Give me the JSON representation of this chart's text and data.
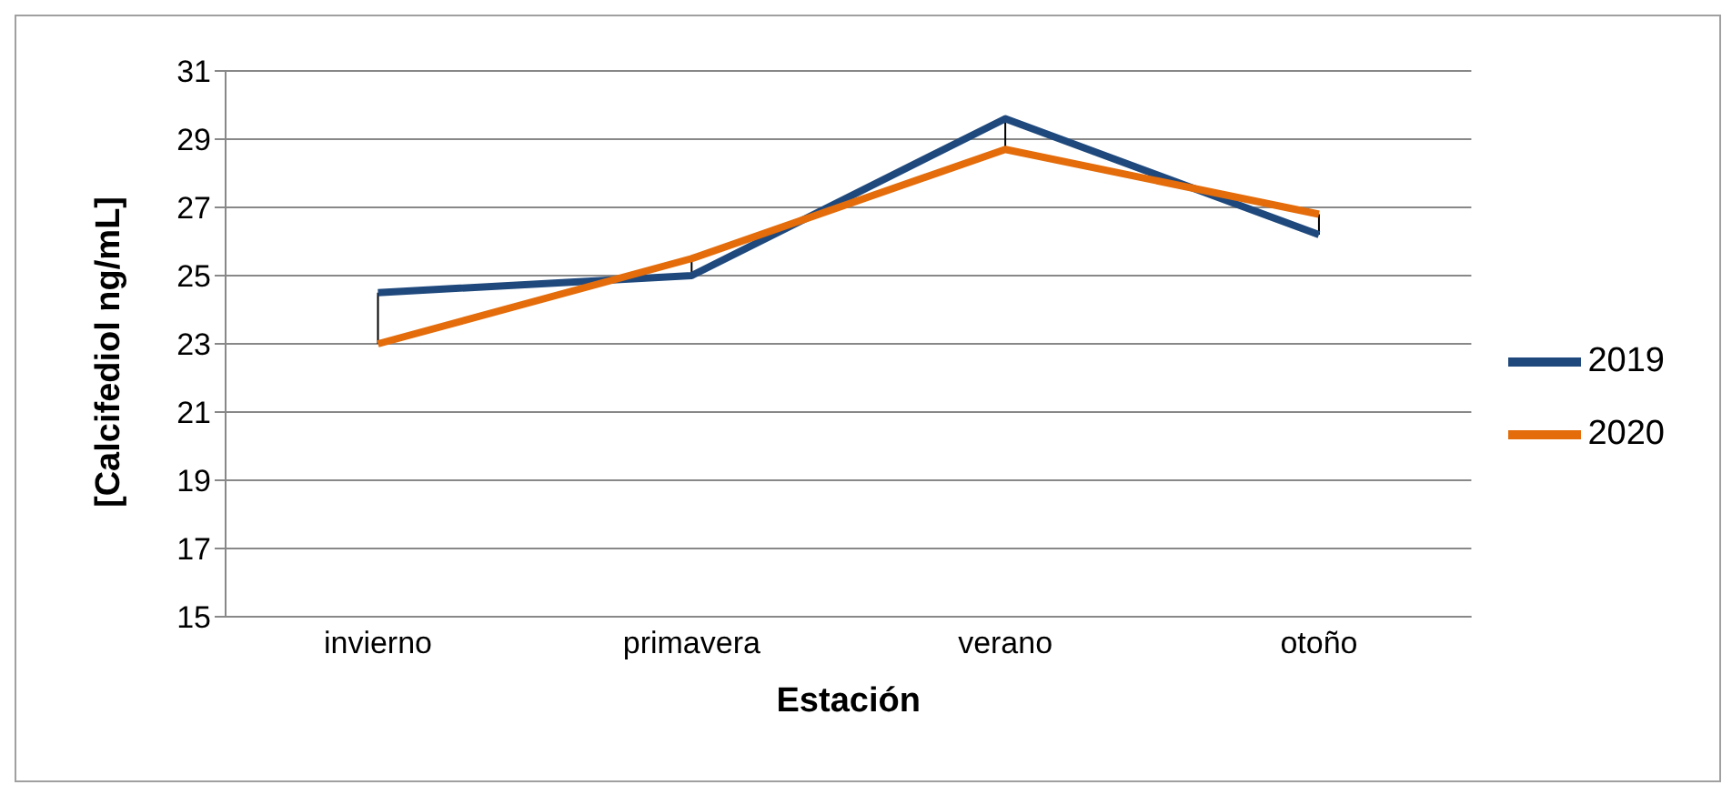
{
  "chart_data": {
    "type": "line",
    "xlabel": "Estación",
    "ylabel": "[Calcifediol ng/mL]",
    "categories": [
      "invierno",
      "primavera",
      "verano",
      "otoño"
    ],
    "series": [
      {
        "name": "2019",
        "color": "#1f497d",
        "values": [
          24.5,
          25.0,
          29.6,
          26.2
        ]
      },
      {
        "name": "2020",
        "color": "#e46c0a",
        "values": [
          23.0,
          25.5,
          28.7,
          26.8
        ]
      }
    ],
    "ylim": [
      15,
      31
    ],
    "yticks": [
      15,
      17,
      19,
      21,
      23,
      25,
      27,
      29,
      31
    ],
    "grid": "y",
    "legend": "right",
    "marker": "none",
    "line_style": "solid"
  }
}
